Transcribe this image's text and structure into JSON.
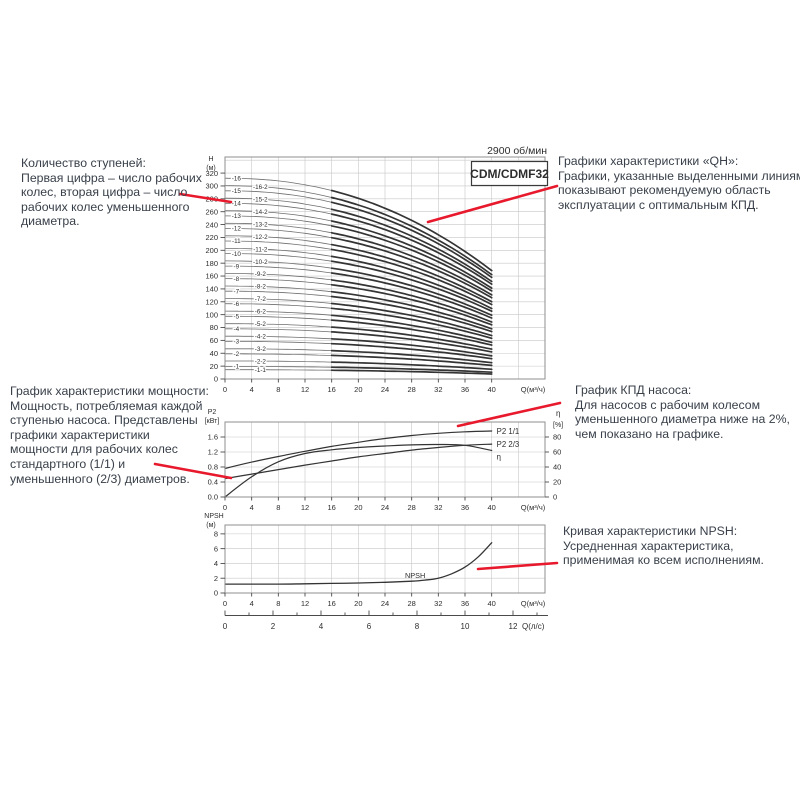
{
  "colors": {
    "accent_red": "#e8192c",
    "grid": "#c8c8c8",
    "frame": "#8f8f8f",
    "axis": "#4a4a4a",
    "curve_thin": "#6e6e6e",
    "curve_bold": "#343434",
    "chart_text": "#2d2d2d",
    "annotation_text": "#39404a"
  },
  "annotations": {
    "stages": {
      "lines": [
        "Количество ступеней:",
        "Первая цифра – число рабочих",
        "колес, вторая цифра – число",
        "рабочих колес уменьшенного",
        "диаметра."
      ]
    },
    "qh": {
      "lines": [
        "Графики характеристики «QH»:",
        "Графики, указанные выделенными линиями,",
        "показывают рекомендуемую область",
        "эксплуатации с оптимальным КПД."
      ]
    },
    "power": {
      "lines": [
        "График характеристики мощности:",
        "Мощность, потребляемая каждой",
        "ступенью насоса. Представлены",
        "графики характеристики",
        "мощности для рабочих колес",
        "стандартного (1/1) и",
        "уменьшенного (2/3) диаметров."
      ]
    },
    "efficiency": {
      "lines": [
        "График КПД насоса:",
        "Для насосов с рабочим колесом",
        "уменьшенного диаметра ниже на 2%,",
        "чем показано на графике."
      ]
    },
    "npsh": {
      "lines": [
        "Кривая характеристики NPSH:",
        "Усредненная характеристика,",
        "применимая ко всем исполнениям."
      ]
    }
  },
  "chart_data": [
    {
      "id": "qh",
      "type": "line",
      "title": "2900 об/мин",
      "model_label": "CDM/CDMF32",
      "ylabel": [
        "H",
        "(м)"
      ],
      "xlabel": "Q(м³/ч)",
      "x_ticks": [
        0,
        4,
        8,
        12,
        16,
        20,
        24,
        28,
        32,
        36,
        40
      ],
      "y_ticks": [
        0,
        20,
        40,
        60,
        80,
        100,
        120,
        140,
        160,
        180,
        200,
        220,
        240,
        260,
        280,
        300,
        320
      ],
      "xlim": [
        0,
        48
      ],
      "ylim": [
        0,
        345
      ],
      "grid": true,
      "legend_note": "bold line segment = recommended operating range",
      "bold_from_q": 16,
      "curve_shape": {
        "droop": 0.46,
        "exp": 2.2,
        "q_end": 40
      },
      "curves": [
        {
          "label": "-16",
          "h0": 312
        },
        {
          "label": "-16-2",
          "h0": 300.5
        },
        {
          "label": "-15",
          "h0": 292.5
        },
        {
          "label": "-15-2",
          "h0": 281
        },
        {
          "label": "-14",
          "h0": 273
        },
        {
          "label": "-14-2",
          "h0": 261.5
        },
        {
          "label": "-13",
          "h0": 253.5
        },
        {
          "label": "-13-2",
          "h0": 242
        },
        {
          "label": "-12",
          "h0": 234
        },
        {
          "label": "-12-2",
          "h0": 222.5
        },
        {
          "label": "-11",
          "h0": 214.5
        },
        {
          "label": "-11-2",
          "h0": 203
        },
        {
          "label": "-10",
          "h0": 195
        },
        {
          "label": "-10-2",
          "h0": 183.5
        },
        {
          "label": "-9",
          "h0": 175.5
        },
        {
          "label": "-9-2",
          "h0": 164
        },
        {
          "label": "-8",
          "h0": 156
        },
        {
          "label": "-8-2",
          "h0": 144.5
        },
        {
          "label": "-7",
          "h0": 136.5
        },
        {
          "label": "-7-2",
          "h0": 125
        },
        {
          "label": "-6",
          "h0": 117
        },
        {
          "label": "-6-2",
          "h0": 105.5
        },
        {
          "label": "-5",
          "h0": 97.5
        },
        {
          "label": "-5-2",
          "h0": 86
        },
        {
          "label": "-4",
          "h0": 78
        },
        {
          "label": "-4-2",
          "h0": 66.5
        },
        {
          "label": "-3",
          "h0": 58.5
        },
        {
          "label": "-3-2",
          "h0": 47
        },
        {
          "label": "-2",
          "h0": 39
        },
        {
          "label": "-2-2",
          "h0": 28
        },
        {
          "label": "-1",
          "h0": 19.5
        },
        {
          "label": "-1-1",
          "h0": 14.5
        }
      ]
    },
    {
      "id": "power_efficiency",
      "type": "line",
      "ylabel_left": [
        "P2",
        "[кВт]"
      ],
      "ylabel_right": [
        "η",
        "[%]"
      ],
      "xlabel": "Q(м³/ч)",
      "x_ticks": [
        0,
        4,
        8,
        12,
        16,
        20,
        24,
        28,
        32,
        36,
        40
      ],
      "y_ticks_left": [
        "0.0",
        "0.4",
        "0.8",
        "1.2",
        "1.6"
      ],
      "y_ticks_right": [
        0,
        20,
        40,
        60,
        80
      ],
      "xlim": [
        0,
        48
      ],
      "ylim_left": [
        0,
        2.0
      ],
      "ylim_right": [
        0,
        100
      ],
      "x": [
        0,
        4,
        8,
        12,
        16,
        20,
        24,
        28,
        32,
        36,
        40
      ],
      "series": [
        {
          "name": "P2 1/1",
          "axis": "left",
          "values": [
            0.76,
            0.93,
            1.08,
            1.22,
            1.35,
            1.46,
            1.56,
            1.64,
            1.7,
            1.74,
            1.76
          ]
        },
        {
          "name": "P2 2/3",
          "axis": "left",
          "values": [
            0.49,
            0.61,
            0.73,
            0.85,
            0.96,
            1.07,
            1.16,
            1.25,
            1.32,
            1.38,
            1.41
          ]
        },
        {
          "name": "η",
          "axis": "right",
          "values": [
            0,
            27,
            47,
            58,
            63,
            66,
            68,
            69.5,
            70,
            69,
            62
          ]
        }
      ]
    },
    {
      "id": "npsh",
      "type": "line",
      "ylabel": [
        "NPSH",
        "(м)"
      ],
      "xlabel": "Q(м³/ч)",
      "xlabel2": "Q(л/с)",
      "x_ticks": [
        0,
        4,
        8,
        12,
        16,
        20,
        24,
        28,
        32,
        36,
        40
      ],
      "x2_ticks": [
        0,
        2,
        4,
        6,
        8,
        10,
        12
      ],
      "y_ticks": [
        0,
        2,
        4,
        6,
        8
      ],
      "xlim": [
        0,
        48
      ],
      "ylim": [
        0,
        9.2
      ],
      "m3h_per_lps": 3.6,
      "series": [
        {
          "name": "NPSH",
          "x": [
            0,
            4,
            8,
            12,
            16,
            20,
            24,
            28,
            30,
            32,
            34,
            36,
            38,
            40
          ],
          "values": [
            1.2,
            1.2,
            1.2,
            1.25,
            1.3,
            1.35,
            1.45,
            1.6,
            1.75,
            2.0,
            2.6,
            3.5,
            4.9,
            6.8
          ]
        }
      ]
    }
  ]
}
